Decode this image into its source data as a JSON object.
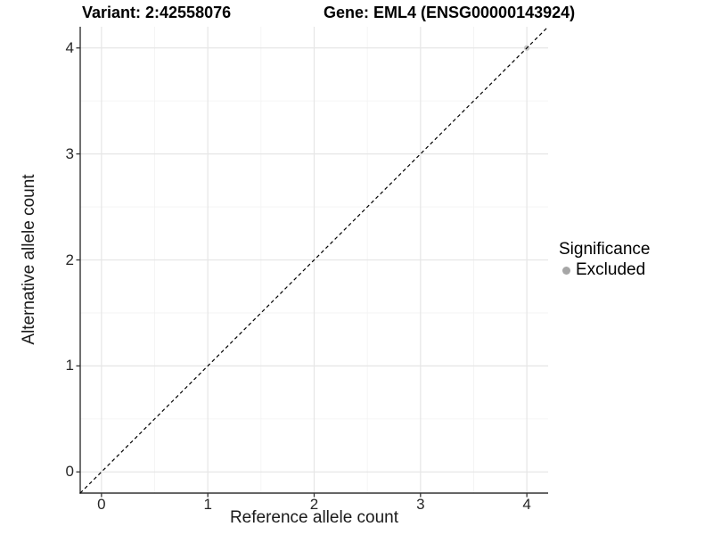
{
  "header": {
    "title_variant": "Variant: 2:42558076",
    "title_gene": "Gene: EML4 (ENSG00000143924)"
  },
  "legend": {
    "title": "Significance",
    "items": [
      {
        "label": "Excluded",
        "color": "#a6a6a6"
      }
    ]
  },
  "colors": {
    "background": "#ffffff",
    "major_grid": "#e6e6e6",
    "minor_grid": "#f3f3f3",
    "axis_line": "#333333",
    "tick_mark": "#333333",
    "identity_line": "#000000",
    "point_excluded": "#c9c9c9"
  },
  "chart_data": {
    "type": "scatter",
    "title": "Variant: 2:42558076    Gene: EML4 (ENSG00000143924)",
    "xlabel": "Reference allele count",
    "ylabel": "Alternative allele count",
    "xlim": [
      -0.2,
      4.2
    ],
    "ylim": [
      -0.2,
      4.2
    ],
    "x_ticks": [
      0,
      1,
      2,
      3,
      4
    ],
    "y_ticks": [
      0,
      1,
      2,
      3,
      4
    ],
    "x_minor_ticks": [
      0.5,
      1.5,
      2.5,
      3.5
    ],
    "y_minor_ticks": [
      0.5,
      1.5,
      2.5,
      3.5
    ],
    "grid": "major and minor, light gray on white",
    "identity_line": {
      "slope": 1,
      "intercept": 0,
      "style": "dashed",
      "color": "#000000"
    },
    "legend_position": "right",
    "series": [
      {
        "name": "Excluded",
        "color": "#c9c9c9",
        "points": [
          {
            "x": 4,
            "y": 4
          }
        ]
      }
    ]
  }
}
